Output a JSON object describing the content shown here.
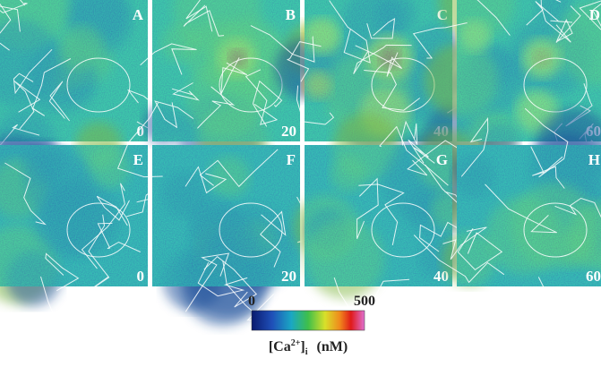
{
  "panels": [
    {
      "letter": "A",
      "time": "0"
    },
    {
      "letter": "B",
      "time": "20"
    },
    {
      "letter": "C",
      "time": "40"
    },
    {
      "letter": "D",
      "time": "60"
    },
    {
      "letter": "E",
      "time": "0"
    },
    {
      "letter": "F",
      "time": "20"
    },
    {
      "letter": "G",
      "time": "40"
    },
    {
      "letter": "H",
      "time": "60"
    }
  ],
  "colorbar": {
    "min": "0",
    "max": "500",
    "label": {
      "open": "[Ca",
      "sup": "2+",
      "close": "]",
      "sub": "i",
      "unit": "(nM)"
    }
  }
}
